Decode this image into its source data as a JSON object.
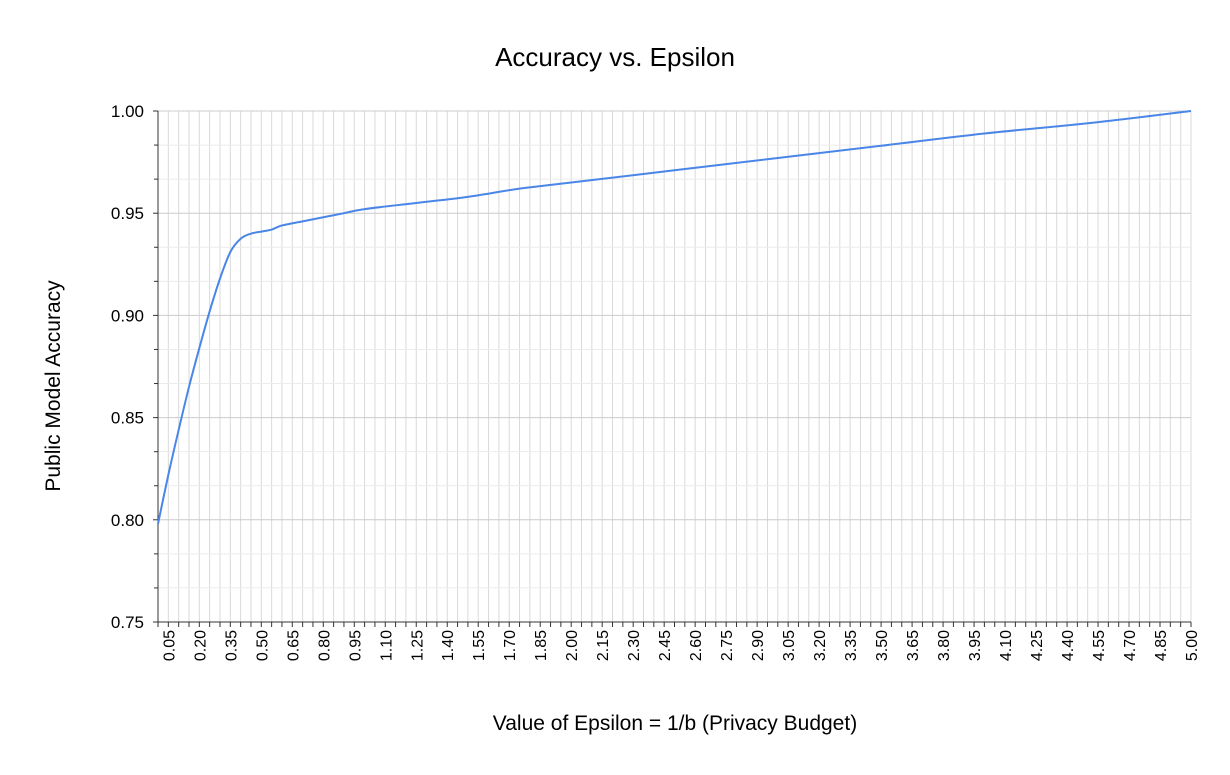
{
  "chart_data": {
    "type": "line",
    "title": "Accuracy vs. Epsilon",
    "xlabel": "Value of Epsilon = 1/b (Privacy Budget)",
    "ylabel": "Public Model Accuracy",
    "xlim": [
      0,
      5.0
    ],
    "ylim": [
      0.75,
      1.0
    ],
    "y_ticks": [
      "0.75",
      "0.80",
      "0.85",
      "0.90",
      "0.95",
      "1.00"
    ],
    "x_tick_labels": [
      "0.05",
      "0.20",
      "0.35",
      "0.50",
      "0.65",
      "0.80",
      "0.95",
      "1.10",
      "1.25",
      "1.40",
      "1.55",
      "1.70",
      "1.85",
      "2.00",
      "2.15",
      "2.30",
      "2.45",
      "2.60",
      "2.75",
      "2.90",
      "3.05",
      "3.20",
      "3.35",
      "3.50",
      "3.65",
      "3.80",
      "3.95",
      "4.10",
      "4.25",
      "4.40",
      "4.55",
      "4.70",
      "4.85",
      "5.00"
    ],
    "grid": true,
    "legend": "none",
    "series": [
      {
        "color": "#4a86e8",
        "x": [
          0.0,
          0.05,
          0.1,
          0.15,
          0.2,
          0.25,
          0.3,
          0.35,
          0.4,
          0.45,
          0.5,
          0.55,
          0.6,
          0.7,
          0.8,
          0.9,
          1.0,
          1.25,
          1.5,
          1.75,
          2.0,
          2.5,
          3.0,
          3.5,
          4.0,
          4.5,
          5.0
        ],
        "y": [
          0.798,
          0.822,
          0.844,
          0.865,
          0.884,
          0.902,
          0.918,
          0.931,
          0.9375,
          0.94,
          0.941,
          0.942,
          0.944,
          0.946,
          0.948,
          0.95,
          0.952,
          0.955,
          0.958,
          0.962,
          0.965,
          0.971,
          0.977,
          0.983,
          0.989,
          0.994,
          1.0
        ]
      }
    ]
  }
}
